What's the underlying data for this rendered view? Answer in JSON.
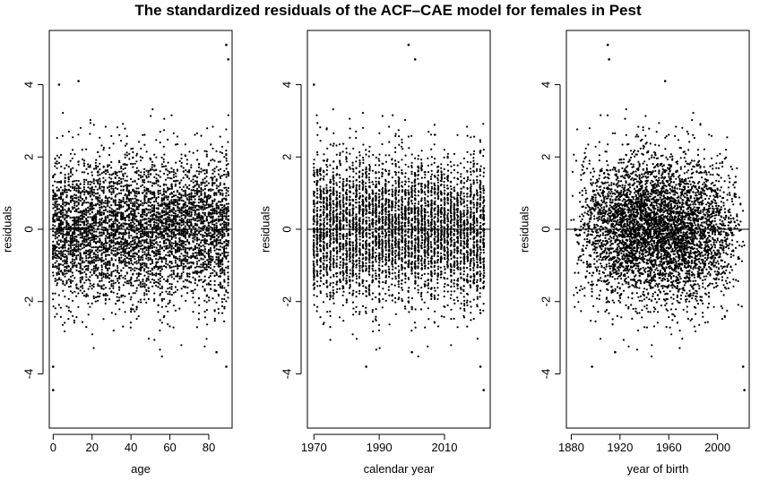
{
  "chart_data": {
    "title": "The standardized residuals of the ACF–CAE model for females in Pest",
    "panels": [
      {
        "type": "scatter",
        "xlabel": "age",
        "ylabel": "residuals",
        "xlim": [
          -2,
          92
        ],
        "ylim": [
          -5.5,
          5.5
        ],
        "xticks": [
          0,
          20,
          40,
          60,
          80
        ],
        "xtick_labels": [
          "0",
          "20",
          "40",
          "60",
          "80"
        ],
        "yticks": [
          -4,
          -2,
          0,
          2,
          4
        ],
        "ytick_labels": [
          "-4",
          "-2",
          "0",
          "2",
          "4"
        ],
        "hline": 0,
        "x_values": "integer ages 0 to 90",
        "y_spread_sd": 1.05,
        "extremes": [
          {
            "x": 89,
            "y": 5.1
          },
          {
            "x": 90,
            "y": 4.7
          },
          {
            "x": 13,
            "y": 4.1
          },
          {
            "x": 3,
            "y": 4.0
          },
          {
            "x": 0,
            "y": -4.45
          },
          {
            "x": 89,
            "y": -3.8
          },
          {
            "x": 0,
            "y": -3.8
          },
          {
            "x": 84,
            "y": -3.4
          }
        ]
      },
      {
        "type": "scatter",
        "xlabel": "calendar year",
        "ylabel": "residuals",
        "xlim": [
          1968,
          2024
        ],
        "ylim": [
          -5.5,
          5.5
        ],
        "xticks": [
          1970,
          1990,
          2010
        ],
        "xtick_labels": [
          "1970",
          "1990",
          "2010"
        ],
        "yticks": [
          -4,
          -2,
          0,
          2,
          4
        ],
        "ytick_labels": [
          "-4",
          "-2",
          "0",
          "2",
          "4"
        ],
        "hline": 0,
        "x_values": "integer years 1970 to 2022",
        "y_spread_sd": 1.05,
        "extremes": [
          {
            "x": 1999,
            "y": 5.1
          },
          {
            "x": 2001,
            "y": 4.7
          },
          {
            "x": 1970,
            "y": 4.0
          },
          {
            "x": 2022,
            "y": -4.45
          },
          {
            "x": 1986,
            "y": -3.8
          },
          {
            "x": 2021,
            "y": -3.8
          },
          {
            "x": 2000,
            "y": -3.4
          }
        ]
      },
      {
        "type": "scatter",
        "xlabel": "year of birth",
        "ylabel": "residuals",
        "xlim": [
          1876,
          2026
        ],
        "ylim": [
          -5.5,
          5.5
        ],
        "xticks": [
          1880,
          1920,
          1960,
          2000
        ],
        "xtick_labels": [
          "1880",
          "1920",
          "1960",
          "2000"
        ],
        "yticks": [
          -4,
          -2,
          0,
          2,
          4
        ],
        "ytick_labels": [
          "-4",
          "-2",
          "0",
          "2",
          "4"
        ],
        "hline": 0,
        "x_values": "calendar year minus age, 1880 to 2022",
        "y_spread_sd": 1.05,
        "extremes": [
          {
            "x": 1910,
            "y": 5.1
          },
          {
            "x": 1911,
            "y": 4.7
          },
          {
            "x": 1957,
            "y": 4.1
          },
          {
            "x": 2022,
            "y": -4.45
          },
          {
            "x": 1897,
            "y": -3.8
          },
          {
            "x": 2021,
            "y": -3.8
          },
          {
            "x": 1916,
            "y": -3.4
          }
        ]
      }
    ]
  }
}
